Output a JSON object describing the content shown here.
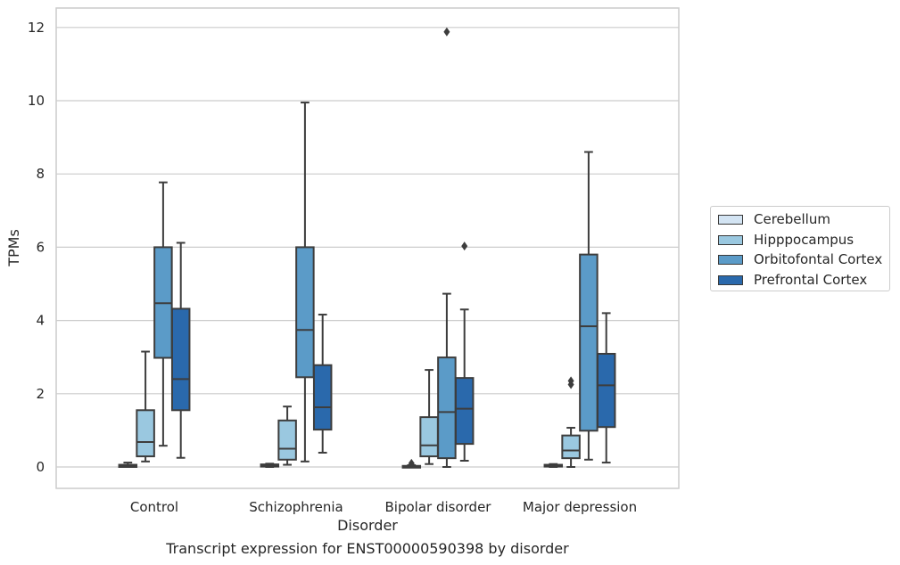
{
  "caption": "Transcript expression for ENST00000590398 by disorder",
  "chart_data": {
    "type": "box",
    "xlabel": "Disorder",
    "ylabel": "TPMs",
    "ylim": [
      -0.6,
      12.5
    ],
    "yticks": [
      0,
      2,
      4,
      6,
      8,
      10,
      12
    ],
    "grid": "horizontal",
    "legend_position": "right",
    "categories": [
      "Control",
      "Schizophrenia",
      "Bipolar disorder",
      "Major depression"
    ],
    "series": [
      {
        "name": "Cerebellum",
        "color": "#d3e4f3",
        "boxes": [
          {
            "whisker_low": 0.0,
            "q1": 0.0,
            "median": 0.03,
            "q3": 0.06,
            "whisker_high": 0.12,
            "outliers": []
          },
          {
            "whisker_low": 0.0,
            "q1": 0.01,
            "median": 0.04,
            "q3": 0.07,
            "whisker_high": 0.09,
            "outliers": []
          },
          {
            "whisker_low": 0.0,
            "q1": 0.0,
            "median": 0.01,
            "q3": 0.03,
            "whisker_high": 0.05,
            "outliers": [
              0.1
            ]
          },
          {
            "whisker_low": 0.0,
            "q1": 0.01,
            "median": 0.03,
            "q3": 0.06,
            "whisker_high": 0.08,
            "outliers": []
          }
        ]
      },
      {
        "name": "Hipppocampus",
        "color": "#9ac8e0",
        "boxes": [
          {
            "whisker_low": 0.15,
            "q1": 0.29,
            "median": 0.68,
            "q3": 1.55,
            "whisker_high": 3.15,
            "outliers": []
          },
          {
            "whisker_low": 0.06,
            "q1": 0.2,
            "median": 0.5,
            "q3": 1.27,
            "whisker_high": 1.65,
            "outliers": []
          },
          {
            "whisker_low": 0.08,
            "q1": 0.29,
            "median": 0.59,
            "q3": 1.36,
            "whisker_high": 2.65,
            "outliers": []
          },
          {
            "whisker_low": 0.0,
            "q1": 0.24,
            "median": 0.45,
            "q3": 0.86,
            "whisker_high": 1.07,
            "outliers": [
              2.25,
              2.35
            ]
          }
        ]
      },
      {
        "name": "Orbitofontal Cortex",
        "color": "#5b9bc8",
        "boxes": [
          {
            "whisker_low": 0.58,
            "q1": 2.98,
            "median": 4.47,
            "q3": 6.0,
            "whisker_high": 7.77,
            "outliers": []
          },
          {
            "whisker_low": 0.15,
            "q1": 2.45,
            "median": 3.74,
            "q3": 6.0,
            "whisker_high": 9.95,
            "outliers": []
          },
          {
            "whisker_low": 0.0,
            "q1": 0.24,
            "median": 1.5,
            "q3": 2.99,
            "whisker_high": 4.73,
            "outliers": [
              11.88
            ]
          },
          {
            "whisker_low": 0.2,
            "q1": 0.99,
            "median": 3.84,
            "q3": 5.8,
            "whisker_high": 8.6,
            "outliers": []
          }
        ]
      },
      {
        "name": "Prefrontal Cortex",
        "color": "#2a69ac",
        "boxes": [
          {
            "whisker_low": 0.25,
            "q1": 1.55,
            "median": 2.4,
            "q3": 4.32,
            "whisker_high": 6.12,
            "outliers": []
          },
          {
            "whisker_low": 0.39,
            "q1": 1.02,
            "median": 1.63,
            "q3": 2.78,
            "whisker_high": 4.16,
            "outliers": []
          },
          {
            "whisker_low": 0.17,
            "q1": 0.63,
            "median": 1.59,
            "q3": 2.43,
            "whisker_high": 4.3,
            "outliers": [
              6.03
            ]
          },
          {
            "whisker_low": 0.12,
            "q1": 1.09,
            "median": 2.23,
            "q3": 3.09,
            "whisker_high": 4.2,
            "outliers": []
          }
        ]
      }
    ]
  }
}
